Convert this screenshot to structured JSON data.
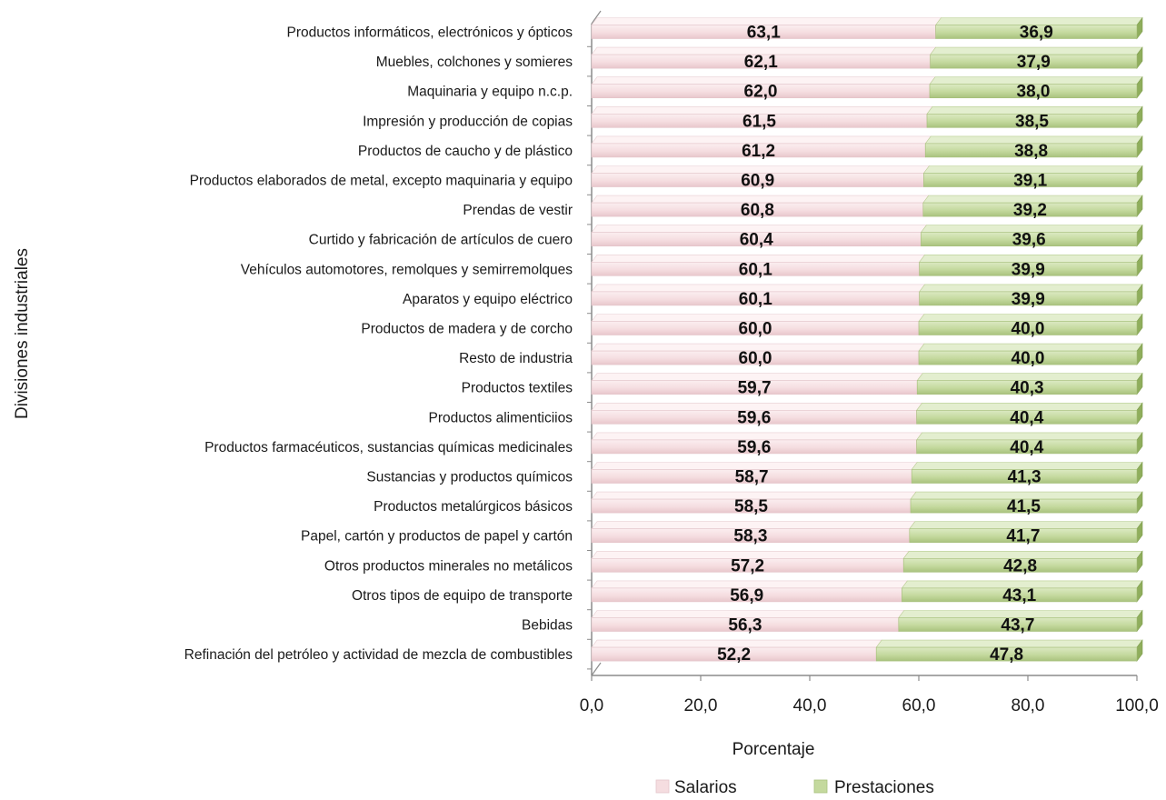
{
  "chart_data": {
    "type": "bar",
    "orientation": "horizontal",
    "stacked": true,
    "categories": [
      "Productos informáticos, electrónicos y ópticos",
      "Muebles, colchones y somieres",
      "Maquinaria y equipo n.c.p.",
      "Impresión y producción de copias",
      "Productos de caucho y de plástico",
      "Productos elaborados de metal, excepto maquinaria y equipo",
      "Prendas de vestir",
      "Curtido y fabricación de artículos de cuero",
      "Vehículos automotores, remolques y semirremolques",
      "Aparatos y equipo eléctrico",
      "Productos de madera y de corcho",
      "Resto de industria",
      "Productos textiles",
      "Productos alimenticiios",
      "Productos farmacéuticos, sustancias químicas medicinales",
      "Sustancias y productos químicos",
      "Productos metalúrgicos básicos",
      "Papel, cartón y productos de papel y cartón",
      "Otros productos minerales no metálicos",
      "Otros tipos de equipo de transporte",
      "Bebidas",
      "Refinación del petróleo y actividad de mezcla de combustibles"
    ],
    "series": [
      {
        "name": "Salarios",
        "color": "#f5dde0",
        "values": [
          63.1,
          62.1,
          62.0,
          61.5,
          61.2,
          60.9,
          60.8,
          60.4,
          60.1,
          60.1,
          60.0,
          60.0,
          59.7,
          59.6,
          59.6,
          58.7,
          58.5,
          58.3,
          57.2,
          56.9,
          56.3,
          52.2
        ],
        "labels": [
          "63,1",
          "62,1",
          "62,0",
          "61,5",
          "61,2",
          "60,9",
          "60,8",
          "60,4",
          "60,1",
          "60,1",
          "60,0",
          "60,0",
          "59,7",
          "59,6",
          "59,6",
          "58,7",
          "58,5",
          "58,3",
          "57,2",
          "56,9",
          "56,3",
          "52,2"
        ]
      },
      {
        "name": "Prestaciones",
        "color": "#c4d99e",
        "values": [
          36.9,
          37.9,
          38.0,
          38.5,
          38.8,
          39.1,
          39.2,
          39.6,
          39.9,
          39.9,
          40.0,
          40.0,
          40.3,
          40.4,
          40.4,
          41.3,
          41.5,
          41.7,
          42.8,
          43.1,
          43.7,
          47.8
        ],
        "labels": [
          "36,9",
          "37,9",
          "38,0",
          "38,5",
          "38,8",
          "39,1",
          "39,2",
          "39,6",
          "39,9",
          "39,9",
          "40,0",
          "40,0",
          "40,3",
          "40,4",
          "40,4",
          "41,3",
          "41,5",
          "41,7",
          "42,8",
          "43,1",
          "43,7",
          "47,8"
        ]
      }
    ],
    "xlabel": "Porcentaje",
    "ylabel": "Divisiones industriales",
    "xlim": [
      0,
      100
    ],
    "xticks": [
      0,
      20,
      40,
      60,
      80,
      100
    ],
    "xtick_labels": [
      "0,0",
      "20,0",
      "40,0",
      "60,0",
      "80,0",
      "100,0"
    ],
    "grid": false,
    "legend_position": "bottom",
    "style": "3d-bar"
  }
}
